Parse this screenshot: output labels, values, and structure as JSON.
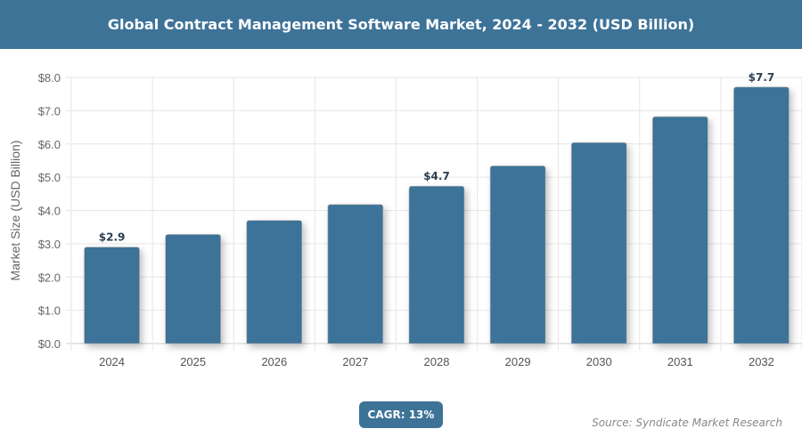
{
  "chart_data": {
    "type": "bar",
    "title": "Global Contract Management Software Market, 2024 - 2032 (USD Billion)",
    "xlabel": "",
    "ylabel": "Market Size (USD Billion)",
    "categories": [
      "2024",
      "2025",
      "2026",
      "2027",
      "2028",
      "2029",
      "2030",
      "2031",
      "2032"
    ],
    "values": [
      2.9,
      3.28,
      3.7,
      4.18,
      4.73,
      5.34,
      6.04,
      6.82,
      7.71
    ],
    "data_labels": {
      "0": "$2.9",
      "4": "$4.7",
      "8": "$7.7"
    },
    "ylim": [
      0,
      8
    ],
    "yticks": [
      "$0.0",
      "$1.0",
      "$2.0",
      "$3.0",
      "$4.0",
      "$5.0",
      "$6.0",
      "$7.0",
      "$8.0"
    ],
    "grid": true,
    "bar_color": "#3e7398"
  },
  "badge": "CAGR: 13%",
  "source": "Source: Syndicate Market Research"
}
